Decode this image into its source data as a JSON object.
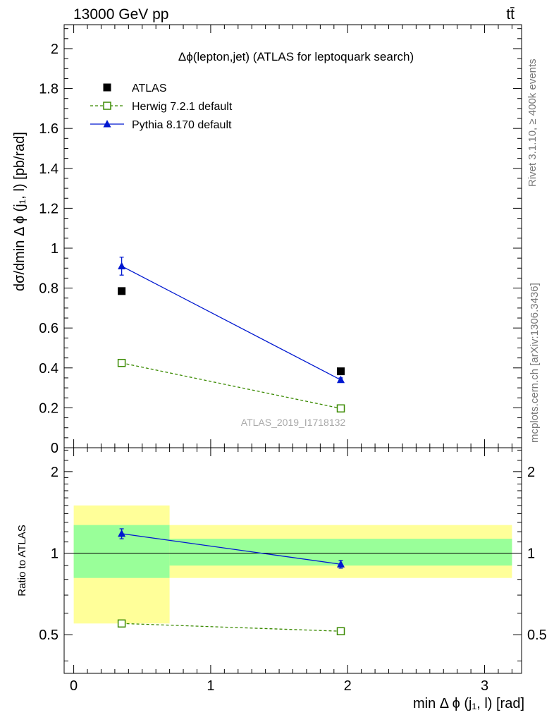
{
  "header": {
    "energy_label": "13000 GeV pp",
    "process_label": "tt̄"
  },
  "side_labels": {
    "rivet": "Rivet 3.1.10, ≥ 400k events",
    "mcplots": "mcplots.cern.ch [arXiv:1306.3436]"
  },
  "chart_data": [
    {
      "type": "line",
      "panel": "main",
      "title": "Δϕ(lepton,jet) (ATLAS for leptoquark search)",
      "ylabel": "dσ/dmin Δ ϕ (j₁, l) [pb/rad]",
      "watermark": "ATLAS_2019_I1718132",
      "xlim": [
        -0.07,
        3.27
      ],
      "ylim": [
        0,
        2.12
      ],
      "yticks": [
        0,
        0.2,
        0.4,
        0.6,
        0.8,
        1,
        1.2,
        1.4,
        1.6,
        1.8,
        2
      ],
      "ytick_labels": [
        "0",
        "0.2",
        "0.4",
        "0.6",
        "0.8",
        "1",
        "1.2",
        "1.4",
        "1.6",
        "1.8",
        "2"
      ],
      "legend_position": "top-left",
      "x": [
        0.35,
        1.95
      ],
      "series": [
        {
          "name": "ATLAS",
          "style": "data",
          "color": "#000000",
          "marker": "filled-square",
          "values": [
            0.785,
            0.383
          ]
        },
        {
          "name": "Herwig 7.2.1 default",
          "style": "dashed",
          "color": "#3a8a00",
          "marker": "open-square",
          "values": [
            0.425,
            0.197
          ]
        },
        {
          "name": "Pythia 8.170 default",
          "style": "solid",
          "color": "#0018d0",
          "marker": "filled-triangle",
          "values": [
            0.91,
            0.34
          ],
          "errors": [
            0.045,
            0.01
          ]
        }
      ]
    },
    {
      "type": "line",
      "panel": "ratio",
      "ylabel": "Ratio to ATLAS",
      "xlabel": "min Δ ϕ (j₁, l) [rad]",
      "xlim": [
        -0.07,
        3.27
      ],
      "ylim": [
        0.36,
        2.45
      ],
      "log_y": true,
      "yticks": [
        0.5,
        1,
        2
      ],
      "ytick_labels": [
        "0.5",
        "1",
        "2"
      ],
      "xticks": [
        0,
        1,
        2,
        3
      ],
      "xtick_labels": [
        "0",
        "1",
        "2",
        "3"
      ],
      "x": [
        0.35,
        1.95
      ],
      "bands": [
        {
          "x_range": [
            0,
            0.7
          ],
          "yellow": [
            0.55,
            1.5
          ],
          "green": [
            0.81,
            1.27
          ]
        },
        {
          "x_range": [
            0.7,
            3.2
          ],
          "yellow": [
            0.81,
            1.27
          ],
          "green": [
            0.9,
            1.13
          ]
        }
      ],
      "band_colors": {
        "yellow": "#ffff99",
        "green": "#99ff99"
      },
      "series": [
        {
          "name": "Herwig 7.2.1 default",
          "style": "dashed",
          "color": "#3a8a00",
          "marker": "open-square",
          "values": [
            0.55,
            0.515
          ]
        },
        {
          "name": "Pythia 8.170 default",
          "style": "solid",
          "color": "#0018d0",
          "marker": "filled-triangle",
          "values": [
            1.18,
            0.91
          ],
          "errors": [
            0.05,
            0.03
          ]
        }
      ]
    }
  ]
}
